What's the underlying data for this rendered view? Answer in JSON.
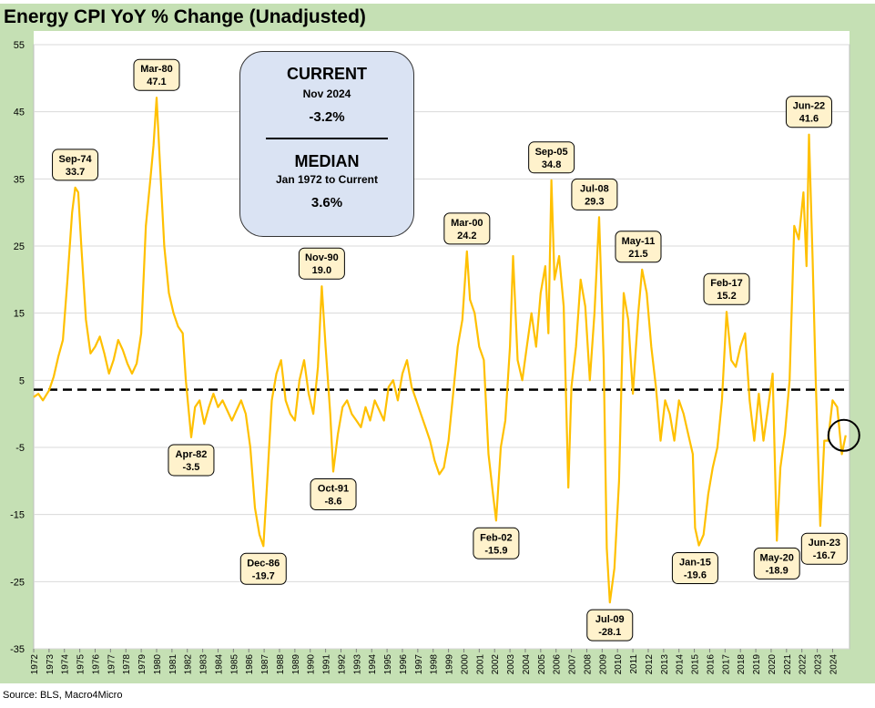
{
  "title": "Energy CPI YoY % Change (Unadjusted)",
  "source": "Source: BLS, Macro4Micro",
  "colors": {
    "line": "#ffc000",
    "background_band": "#c5e0b4",
    "plot_bg": "#ffffff",
    "label_box": "#fff2cc",
    "info_box": "#dae3f3"
  },
  "info_box": {
    "current_label": "CURRENT",
    "current_date": "Nov 2024",
    "current_value": "-3.2%",
    "median_label": "MEDIAN",
    "median_range": "Jan 1972 to Current",
    "median_value": "3.6%"
  },
  "chart_data": {
    "type": "line",
    "title": "Energy CPI YoY % Change (Unadjusted)",
    "xlabel": "",
    "ylabel": "",
    "ylim": [
      -35,
      55
    ],
    "yticks": [
      55,
      45,
      35,
      25,
      15,
      5,
      -5,
      -15,
      -25,
      -35
    ],
    "xlim": [
      1972,
      2025
    ],
    "xticks": [
      1972,
      1973,
      1974,
      1975,
      1976,
      1977,
      1978,
      1979,
      1980,
      1981,
      1982,
      1983,
      1984,
      1985,
      1986,
      1987,
      1988,
      1989,
      1990,
      1991,
      1992,
      1993,
      1994,
      1995,
      1996,
      1997,
      1998,
      1999,
      2000,
      2001,
      2002,
      2003,
      2004,
      2005,
      2006,
      2007,
      2008,
      2009,
      2010,
      2011,
      2012,
      2013,
      2014,
      2015,
      2016,
      2017,
      2018,
      2019,
      2020,
      2021,
      2022,
      2023,
      2024
    ],
    "grid": true,
    "median_line": 3.6,
    "series": [
      {
        "x": [
          1972.0,
          1972.3,
          1972.6,
          1973.0,
          1973.3,
          1973.6,
          1973.9,
          1974.2,
          1974.5,
          1974.7,
          1974.9,
          1975.1,
          1975.4,
          1975.7,
          1976.0,
          1976.3,
          1976.6,
          1976.9,
          1977.2,
          1977.5,
          1977.8,
          1978.1,
          1978.4,
          1978.7,
          1979.0,
          1979.3,
          1979.6,
          1979.8,
          1980.0,
          1980.2,
          1980.5,
          1980.8,
          1981.1,
          1981.4,
          1981.7,
          1981.9,
          1982.25,
          1982.5,
          1982.8,
          1983.1,
          1983.4,
          1983.7,
          1984.0,
          1984.3,
          1984.6,
          1984.9,
          1985.2,
          1985.5,
          1985.8,
          1986.1,
          1986.4,
          1986.7,
          1986.95,
          1987.2,
          1987.5,
          1987.8,
          1988.1,
          1988.4,
          1988.7,
          1989.0,
          1989.3,
          1989.6,
          1989.9,
          1990.2,
          1990.5,
          1990.75,
          1991.0,
          1991.3,
          1991.5,
          1991.8,
          1992.1,
          1992.4,
          1992.7,
          1993.0,
          1993.3,
          1993.6,
          1993.9,
          1994.2,
          1994.5,
          1994.8,
          1995.1,
          1995.4,
          1995.7,
          1996.0,
          1996.3,
          1996.6,
          1996.9,
          1997.2,
          1997.5,
          1997.8,
          1998.1,
          1998.4,
          1998.7,
          1999.0,
          1999.3,
          1999.6,
          1999.9,
          2000.2,
          2000.4,
          2000.7,
          2001.0,
          2001.3,
          2001.6,
          2001.9,
          2002.1,
          2002.4,
          2002.7,
          2003.0,
          2003.2,
          2003.5,
          2003.8,
          2004.1,
          2004.4,
          2004.7,
          2005.0,
          2005.3,
          2005.5,
          2005.7,
          2005.9,
          2006.2,
          2006.5,
          2006.8,
          2007.0,
          2007.3,
          2007.6,
          2007.9,
          2008.2,
          2008.5,
          2008.8,
          2009.1,
          2009.3,
          2009.5,
          2009.8,
          2010.1,
          2010.4,
          2010.7,
          2011.0,
          2011.2,
          2011.35,
          2011.6,
          2011.9,
          2012.2,
          2012.5,
          2012.8,
          2013.1,
          2013.4,
          2013.7,
          2014.0,
          2014.3,
          2014.6,
          2014.9,
          2015.05,
          2015.3,
          2015.6,
          2015.9,
          2016.2,
          2016.5,
          2016.8,
          2017.1,
          2017.4,
          2017.7,
          2018.0,
          2018.3,
          2018.6,
          2018.9,
          2019.2,
          2019.5,
          2019.8,
          2020.1,
          2020.37,
          2020.6,
          2020.9,
          2021.2,
          2021.5,
          2021.8,
          2022.1,
          2022.3,
          2022.46,
          2022.7,
          2022.9,
          2023.2,
          2023.46,
          2023.7,
          2024.0,
          2024.3,
          2024.6,
          2024.85
        ],
        "values": [
          2.5,
          3.0,
          2.0,
          3.5,
          5.5,
          8.5,
          11.0,
          20.0,
          30.0,
          33.7,
          33.0,
          25.0,
          14.0,
          9.0,
          10.0,
          11.5,
          9.0,
          6.0,
          8.0,
          11.0,
          9.5,
          7.5,
          6.0,
          7.5,
          12.0,
          28.0,
          35.0,
          40.0,
          47.1,
          38.0,
          25.0,
          18.0,
          15.0,
          13.0,
          12.0,
          5.0,
          -3.5,
          1.0,
          2.0,
          -1.5,
          1.0,
          3.0,
          1.0,
          2.0,
          0.5,
          -1.0,
          0.5,
          2.0,
          0.0,
          -5.0,
          -14.0,
          -18.0,
          -19.7,
          -10.0,
          2.0,
          6.0,
          8.0,
          2.0,
          0.0,
          -1.0,
          5.0,
          8.0,
          3.0,
          0.0,
          7.0,
          19.0,
          10.0,
          0.0,
          -8.6,
          -3.0,
          1.0,
          2.0,
          0.0,
          -1.0,
          -2.0,
          1.0,
          -1.0,
          2.0,
          0.5,
          -1.0,
          4.0,
          5.0,
          2.0,
          6.0,
          8.0,
          4.0,
          2.0,
          0.0,
          -2.0,
          -4.0,
          -7.0,
          -9.0,
          -8.0,
          -4.0,
          3.0,
          10.0,
          14.0,
          24.2,
          17.0,
          15.0,
          10.0,
          8.0,
          -6.0,
          -12.0,
          -15.9,
          -5.0,
          -1.0,
          10.0,
          23.5,
          8.0,
          5.0,
          10.0,
          15.0,
          10.0,
          18.0,
          22.0,
          12.0,
          34.8,
          20.0,
          23.5,
          16.0,
          -11.0,
          4.0,
          10.0,
          20.0,
          16.0,
          5.0,
          15.0,
          29.3,
          8.0,
          -20.0,
          -28.1,
          -23.0,
          -10.0,
          18.0,
          14.0,
          3.0,
          10.0,
          15.0,
          21.5,
          18.0,
          10.0,
          4.0,
          -4.0,
          2.0,
          0.0,
          -4.0,
          2.0,
          0.0,
          -3.0,
          -6.0,
          -17.0,
          -19.6,
          -18.0,
          -12.0,
          -8.0,
          -5.0,
          2.0,
          15.2,
          8.0,
          7.0,
          10.0,
          12.0,
          2.0,
          -4.0,
          3.0,
          -4.0,
          1.0,
          6.0,
          -18.9,
          -8.0,
          -3.0,
          5.0,
          28.0,
          26.0,
          33.0,
          22.0,
          41.6,
          23.0,
          5.0,
          -16.7,
          -4.0,
          -4.0,
          2.0,
          1.0,
          -6.0,
          -3.2
        ]
      }
    ],
    "annotations": [
      {
        "label": "Sep-74",
        "value": "33.7",
        "x": 1974.7,
        "y": 33.7
      },
      {
        "label": "Mar-80",
        "value": "47.1",
        "x": 1980.0,
        "y": 47.1
      },
      {
        "label": "Apr-82",
        "value": "-3.5",
        "x": 1982.25,
        "y": -3.5
      },
      {
        "label": "Dec-86",
        "value": "-19.7",
        "x": 1986.95,
        "y": -19.7
      },
      {
        "label": "Nov-90",
        "value": "19.0",
        "x": 1990.75,
        "y": 19.0
      },
      {
        "label": "Oct-91",
        "value": "-8.6",
        "x": 1991.5,
        "y": -8.6
      },
      {
        "label": "Mar-00",
        "value": "24.2",
        "x": 2000.2,
        "y": 24.2
      },
      {
        "label": "Feb-02",
        "value": "-15.9",
        "x": 2002.1,
        "y": -15.9
      },
      {
        "label": "Sep-05",
        "value": "34.8",
        "x": 2005.7,
        "y": 34.8
      },
      {
        "label": "Jul-08",
        "value": "29.3",
        "x": 2008.5,
        "y": 29.3
      },
      {
        "label": "Jul-09",
        "value": "-28.1",
        "x": 2009.5,
        "y": -28.1
      },
      {
        "label": "May-11",
        "value": "21.5",
        "x": 2011.35,
        "y": 21.5
      },
      {
        "label": "Jan-15",
        "value": "-19.6",
        "x": 2015.05,
        "y": -19.6
      },
      {
        "label": "Feb-17",
        "value": "15.2",
        "x": 2017.1,
        "y": 15.2
      },
      {
        "label": "May-20",
        "value": "-18.9",
        "x": 2020.37,
        "y": -18.9
      },
      {
        "label": "Jun-22",
        "value": "41.6",
        "x": 2022.46,
        "y": 41.6
      },
      {
        "label": "Jun-23",
        "value": "-16.7",
        "x": 2023.46,
        "y": -16.7
      }
    ],
    "current_marker": {
      "x": 2024.85,
      "y": -3.2
    }
  }
}
